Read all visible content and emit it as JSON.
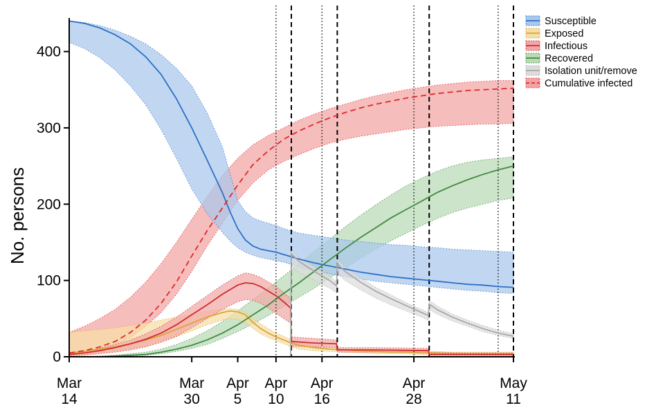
{
  "chart_data": {
    "type": "line",
    "title": "",
    "xlabel": "",
    "ylabel": "No. persons",
    "xlim": [
      0,
      58
    ],
    "ylim": [
      0,
      440
    ],
    "y_ticks": [
      0,
      100,
      200,
      300,
      400
    ],
    "x_tick_labels": [
      {
        "day": 0,
        "lines": [
          "Mar",
          "14"
        ]
      },
      {
        "day": 16,
        "lines": [
          "Mar",
          "30"
        ]
      },
      {
        "day": 22,
        "lines": [
          "Apr",
          "5"
        ]
      },
      {
        "day": 27,
        "lines": [
          "Apr",
          "10"
        ]
      },
      {
        "day": 33,
        "lines": [
          "Apr",
          "16"
        ]
      },
      {
        "day": 45,
        "lines": [
          "Apr",
          "28"
        ]
      },
      {
        "day": 58,
        "lines": [
          "May",
          "11"
        ]
      }
    ],
    "dotted_vlines": [
      27,
      33,
      45,
      56
    ],
    "dashed_vlines": [
      29,
      35,
      47,
      58
    ],
    "legend_position": "top-right",
    "series": [
      {
        "name": "Susceptible",
        "color": "#2b6fc7",
        "fill": "#a9c8ec",
        "dash": "solid",
        "x": [
          0,
          2,
          4,
          6,
          8,
          10,
          12,
          14,
          16,
          18,
          20,
          21,
          22,
          23,
          24,
          25,
          26,
          27,
          28,
          29,
          30,
          32,
          34,
          36,
          38,
          40,
          42,
          44,
          46,
          48,
          50,
          52,
          54,
          56,
          58
        ],
        "values": [
          440,
          437,
          431,
          422,
          410,
          393,
          370,
          338,
          300,
          258,
          215,
          190,
          168,
          153,
          145,
          141,
          139,
          137,
          134,
          131,
          128,
          123,
          119,
          115,
          111,
          108,
          105,
          103,
          101,
          99,
          97,
          95,
          94,
          92,
          91
        ],
        "lower": [
          412,
          404,
          392,
          376,
          355,
          330,
          298,
          260,
          220,
          188,
          163,
          152,
          143,
          137,
          133,
          130,
          128,
          126,
          124,
          121,
          118,
          113,
          109,
          105,
          102,
          99,
          97,
          95,
          93,
          91,
          89,
          87,
          86,
          84,
          83
        ],
        "upper": [
          440,
          438,
          434,
          428,
          420,
          410,
          396,
          378,
          355,
          320,
          275,
          240,
          205,
          190,
          182,
          178,
          175,
          172,
          168,
          165,
          162,
          159,
          156,
          153,
          151,
          149,
          147,
          146,
          144,
          143,
          141,
          140,
          139,
          138,
          137
        ]
      },
      {
        "name": "Exposed",
        "color": "#d9a43a",
        "fill": "#f6dfa6",
        "dash": "solid",
        "x": [
          0,
          2,
          4,
          6,
          8,
          10,
          12,
          14,
          16,
          18,
          20,
          21,
          22,
          23,
          24,
          25,
          26,
          27,
          28,
          29,
          30,
          32,
          34,
          36,
          38,
          40,
          42,
          44,
          46,
          48,
          50,
          52,
          54,
          56,
          58
        ],
        "values": [
          5,
          7,
          10,
          13,
          17,
          22,
          28,
          36,
          44,
          52,
          58,
          60,
          59,
          55,
          45,
          37,
          31,
          26,
          22,
          18,
          15,
          12,
          10,
          9,
          8,
          7,
          6,
          6,
          5,
          5,
          4,
          4,
          4,
          4,
          4
        ],
        "lower": [
          2,
          3,
          5,
          7,
          10,
          14,
          19,
          26,
          34,
          42,
          48,
          50,
          49,
          45,
          37,
          30,
          25,
          21,
          17,
          13,
          10,
          8,
          7,
          6,
          5,
          4,
          4,
          4,
          3,
          3,
          3,
          3,
          2,
          2,
          2
        ],
        "upper": [
          32,
          34,
          36,
          38,
          41,
          44,
          48,
          52,
          56,
          60,
          62,
          63,
          62,
          58,
          50,
          43,
          37,
          31,
          27,
          22,
          18,
          15,
          13,
          11,
          10,
          9,
          8,
          8,
          7,
          7,
          6,
          6,
          6,
          6,
          6
        ]
      },
      {
        "name": "Infectious",
        "color": "#d02a2a",
        "fill": "#f1a7a7",
        "dash": "solid",
        "x": [
          0,
          2,
          4,
          6,
          8,
          10,
          12,
          14,
          16,
          18,
          20,
          22,
          23,
          24,
          25,
          26,
          27,
          28,
          28.9,
          29,
          32,
          34.9,
          35,
          40,
          46.9,
          47,
          52,
          58
        ],
        "values": [
          3,
          5,
          8,
          12,
          17,
          23,
          31,
          42,
          55,
          68,
          82,
          94,
          97,
          96,
          92,
          86,
          80,
          72,
          64,
          20,
          18,
          17,
          9,
          9,
          8,
          3,
          3,
          3
        ],
        "lower": [
          1,
          2,
          4,
          6,
          9,
          13,
          19,
          27,
          38,
          50,
          62,
          72,
          75,
          74,
          70,
          64,
          57,
          50,
          44,
          14,
          13,
          12,
          6,
          6,
          5,
          2,
          2,
          2
        ],
        "upper": [
          5,
          7,
          11,
          16,
          22,
          30,
          40,
          52,
          66,
          80,
          94,
          106,
          110,
          108,
          104,
          98,
          92,
          84,
          76,
          26,
          24,
          22,
          12,
          12,
          11,
          6,
          5,
          5
        ]
      },
      {
        "name": "Recovered",
        "color": "#3f8a3f",
        "fill": "#b9dab5",
        "dash": "solid",
        "x": [
          0,
          2,
          4,
          6,
          8,
          10,
          12,
          14,
          16,
          18,
          20,
          22,
          24,
          26,
          28,
          30,
          32,
          34,
          36,
          38,
          40,
          42,
          44,
          46,
          48,
          50,
          52,
          54,
          56,
          58
        ],
        "values": [
          0,
          0,
          0,
          1,
          2,
          3,
          6,
          10,
          15,
          22,
          31,
          42,
          55,
          68,
          83,
          97,
          112,
          127,
          142,
          156,
          169,
          182,
          193,
          204,
          215,
          224,
          232,
          239,
          245,
          250
        ],
        "lower": [
          0,
          0,
          0,
          0,
          1,
          2,
          4,
          7,
          11,
          16,
          24,
          33,
          43,
          54,
          66,
          78,
          90,
          103,
          116,
          129,
          141,
          152,
          162,
          172,
          181,
          189,
          195,
          200,
          205,
          208
        ],
        "upper": [
          0,
          0,
          1,
          2,
          4,
          6,
          10,
          16,
          24,
          34,
          46,
          60,
          75,
          90,
          106,
          122,
          138,
          154,
          170,
          185,
          199,
          212,
          224,
          234,
          243,
          250,
          255,
          258,
          260,
          262
        ]
      },
      {
        "name": "Isolation unit/remove",
        "color": "#a8a8a8",
        "fill": "#dcdcdc",
        "dash": "solid",
        "x": [
          0,
          27,
          28.9,
          29,
          30,
          32,
          34,
          34.9,
          35,
          36,
          38,
          40,
          42,
          44,
          46,
          46.9,
          47,
          48,
          50,
          52,
          54,
          56,
          58
        ],
        "values": [
          0,
          0,
          0,
          135,
          125,
          112,
          100,
          93,
          122,
          112,
          98,
          86,
          76,
          67,
          58,
          54,
          69,
          62,
          52,
          44,
          37,
          31,
          27
        ],
        "lower": [
          0,
          0,
          0,
          118,
          110,
          100,
          90,
          84,
          110,
          100,
          88,
          77,
          68,
          60,
          52,
          48,
          62,
          56,
          47,
          40,
          33,
          28,
          24
        ],
        "upper": [
          0,
          0,
          0,
          140,
          130,
          118,
          106,
          98,
          128,
          118,
          104,
          91,
          81,
          71,
          62,
          58,
          74,
          67,
          56,
          48,
          41,
          35,
          30
        ]
      },
      {
        "name": "Cumulative infected",
        "color": "#e02828",
        "fill": "#f3a3a3",
        "dash": "dashed",
        "x": [
          0,
          2,
          4,
          6,
          8,
          10,
          12,
          14,
          16,
          18,
          20,
          22,
          24,
          26,
          28,
          30,
          32,
          34,
          36,
          38,
          40,
          42,
          44,
          46,
          48,
          50,
          52,
          54,
          56,
          58
        ],
        "values": [
          5,
          8,
          13,
          20,
          32,
          48,
          70,
          98,
          132,
          165,
          195,
          225,
          252,
          270,
          285,
          296,
          305,
          313,
          320,
          326,
          331,
          335,
          339,
          342,
          345,
          347,
          349,
          350,
          351,
          352
        ],
        "lower": [
          3,
          5,
          9,
          15,
          25,
          40,
          58,
          82,
          112,
          145,
          175,
          205,
          228,
          245,
          256,
          265,
          273,
          280,
          285,
          289,
          292,
          295,
          298,
          300,
          302,
          303,
          304,
          305,
          305,
          306
        ],
        "upper": [
          32,
          40,
          50,
          62,
          78,
          98,
          122,
          150,
          180,
          210,
          238,
          260,
          278,
          290,
          300,
          310,
          318,
          325,
          331,
          337,
          342,
          346,
          350,
          353,
          356,
          358,
          360,
          361,
          362,
          362
        ]
      }
    ]
  }
}
